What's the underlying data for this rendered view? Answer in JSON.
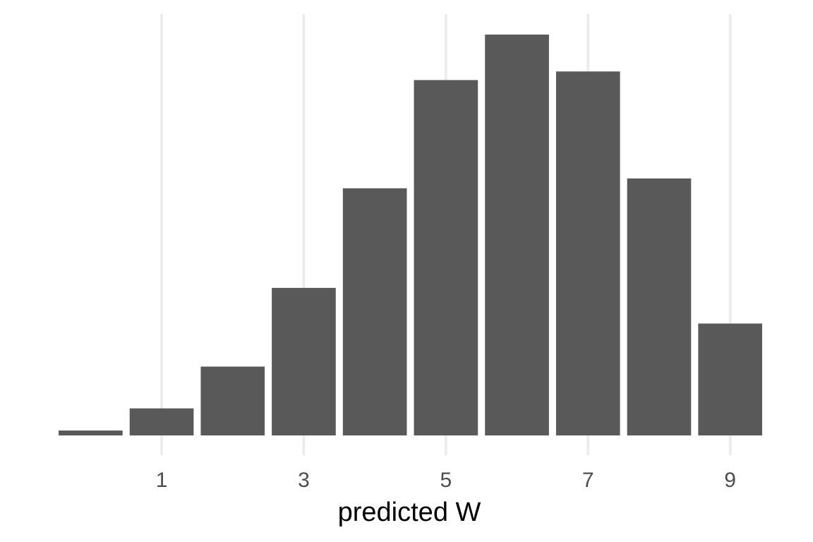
{
  "chart_data": {
    "type": "bar",
    "title": "",
    "xlabel": "predicted W",
    "ylabel": "",
    "categories": [
      0,
      1,
      2,
      3,
      4,
      5,
      6,
      7,
      8,
      9
    ],
    "values": [
      0.4,
      2.2,
      5.6,
      12.0,
      20.1,
      28.9,
      32.6,
      29.6,
      20.9,
      9.1
    ],
    "xlim": [
      -0.5,
      9.5
    ],
    "ylim": [
      0,
      35
    ],
    "x_ticks": [
      1,
      3,
      5,
      7,
      9
    ],
    "y_axis_visible": false,
    "grid": "vertical major only",
    "bar_color": "#595959",
    "grid_color": "#ebebeb",
    "legend": "none"
  }
}
